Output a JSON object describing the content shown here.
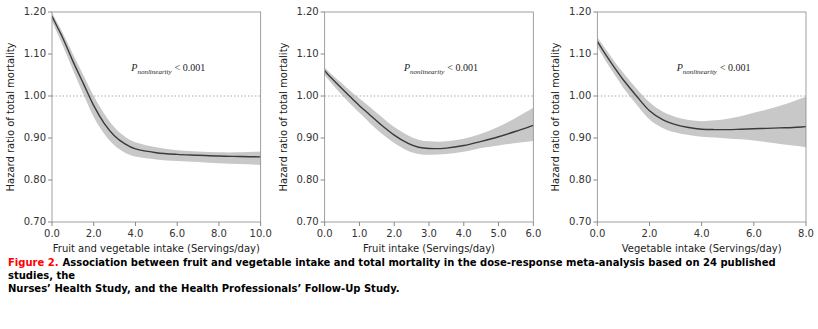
{
  "chart_data": [
    {
      "type": "line",
      "xlabel": "Fruit and vegetable intake (Servings/day)",
      "ylabel": "Hazard ratio of total mortality",
      "xlim": [
        0,
        10
      ],
      "xticks": [
        {
          "value": 0.0,
          "label": "0.0"
        },
        {
          "value": 2.0,
          "label": "2.0"
        },
        {
          "value": 4.0,
          "label": "4.0"
        },
        {
          "value": 6.0,
          "label": "6.0"
        },
        {
          "value": 8.0,
          "label": "8.0"
        },
        {
          "value": 10.0,
          "label": "10.0"
        }
      ],
      "ylim": [
        0.7,
        1.2
      ],
      "yticks": [
        {
          "value": 0.7,
          "label": "0.70"
        },
        {
          "value": 0.8,
          "label": "0.80"
        },
        {
          "value": 0.9,
          "label": "0.90"
        },
        {
          "value": 1.0,
          "label": "1.00"
        },
        {
          "value": 1.1,
          "label": "1.10"
        },
        {
          "value": 1.2,
          "label": "1.20"
        }
      ],
      "grid": false,
      "x": [
        0.0,
        0.25,
        0.5,
        0.75,
        1.0,
        1.5,
        2.0,
        2.5,
        3.0,
        3.5,
        4.0,
        5.0,
        6.0,
        7.0,
        8.0,
        9.0,
        10.0
      ],
      "series": [
        {
          "type": "band",
          "color": "#c8c8c8",
          "upper": [
            1.198,
            1.175,
            1.152,
            1.126,
            1.1,
            1.05,
            1.0,
            0.958,
            0.925,
            0.903,
            0.89,
            0.878,
            0.871,
            0.868,
            0.866,
            0.866,
            0.868
          ],
          "lower": [
            1.178,
            1.15,
            1.122,
            1.092,
            1.062,
            1.005,
            0.95,
            0.91,
            0.882,
            0.865,
            0.856,
            0.849,
            0.845,
            0.843,
            0.84,
            0.838,
            0.836
          ]
        },
        {
          "type": "line",
          "color": "#3a3a3a",
          "values": [
            1.19,
            1.165,
            1.14,
            1.112,
            1.083,
            1.03,
            0.977,
            0.935,
            0.905,
            0.886,
            0.874,
            0.865,
            0.861,
            0.859,
            0.857,
            0.856,
            0.855
          ]
        }
      ],
      "reference_lines": [
        {
          "y": 1.0,
          "color": "#aaaaaa",
          "line_style": "dotted"
        }
      ],
      "annotations": [
        {
          "base": "P",
          "sub": "nonlinearity",
          "text": "< 0.001"
        }
      ]
    },
    {
      "type": "line",
      "xlabel": "Fruit intake (Servings/day)",
      "ylabel": "Hazard ratio of total mortality",
      "xlim": [
        0,
        6
      ],
      "xticks": [
        {
          "value": 0.0,
          "label": "0.0"
        },
        {
          "value": 1.0,
          "label": "1.0"
        },
        {
          "value": 2.0,
          "label": "2.0"
        },
        {
          "value": 3.0,
          "label": "3.0"
        },
        {
          "value": 4.0,
          "label": "4.0"
        },
        {
          "value": 5.0,
          "label": "5.0"
        },
        {
          "value": 6.0,
          "label": "6.0"
        }
      ],
      "ylim": [
        0.7,
        1.2
      ],
      "yticks": [
        {
          "value": 0.7,
          "label": "0.70"
        },
        {
          "value": 0.8,
          "label": "0.80"
        },
        {
          "value": 0.9,
          "label": "0.90"
        },
        {
          "value": 1.0,
          "label": "1.00"
        },
        {
          "value": 1.1,
          "label": "1.10"
        },
        {
          "value": 1.2,
          "label": "1.20"
        }
      ],
      "grid": false,
      "x": [
        0.0,
        0.2,
        0.5,
        0.8,
        1.0,
        1.3,
        1.6,
        2.0,
        2.4,
        2.7,
        3.0,
        3.5,
        4.0,
        4.5,
        5.0,
        5.5,
        6.0
      ],
      "series": [
        {
          "type": "band",
          "color": "#c8c8c8",
          "upper": [
            1.068,
            1.052,
            1.03,
            1.008,
            0.994,
            0.974,
            0.953,
            0.926,
            0.906,
            0.896,
            0.892,
            0.892,
            0.898,
            0.91,
            0.927,
            0.948,
            0.972
          ],
          "lower": [
            1.05,
            1.03,
            1.002,
            0.976,
            0.96,
            0.936,
            0.913,
            0.888,
            0.869,
            0.862,
            0.86,
            0.862,
            0.867,
            0.876,
            0.882,
            0.888,
            0.893
          ]
        },
        {
          "type": "line",
          "color": "#3a3a3a",
          "values": [
            1.06,
            1.042,
            1.017,
            0.993,
            0.977,
            0.955,
            0.933,
            0.907,
            0.887,
            0.878,
            0.875,
            0.876,
            0.882,
            0.892,
            0.903,
            0.916,
            0.93
          ]
        }
      ],
      "reference_lines": [
        {
          "y": 1.0,
          "color": "#aaaaaa",
          "line_style": "dotted"
        }
      ],
      "annotations": [
        {
          "base": "P",
          "sub": "nonlinearity",
          "text": "< 0.001"
        }
      ]
    },
    {
      "type": "line",
      "xlabel": "Vegetable intake (Servings/day)",
      "ylabel": "Hazard ratio of total mortality",
      "xlim": [
        0,
        8
      ],
      "xticks": [
        {
          "value": 0.0,
          "label": "0.0"
        },
        {
          "value": 2.0,
          "label": "2.0"
        },
        {
          "value": 4.0,
          "label": "4.0"
        },
        {
          "value": 6.0,
          "label": "6.0"
        },
        {
          "value": 8.0,
          "label": "8.0"
        }
      ],
      "ylim": [
        0.7,
        1.2
      ],
      "yticks": [
        {
          "value": 0.7,
          "label": "0.70"
        },
        {
          "value": 0.8,
          "label": "0.80"
        },
        {
          "value": 0.9,
          "label": "0.90"
        },
        {
          "value": 1.0,
          "label": "1.00"
        },
        {
          "value": 1.1,
          "label": "1.10"
        },
        {
          "value": 1.2,
          "label": "1.20"
        }
      ],
      "grid": false,
      "x": [
        0.0,
        0.2,
        0.5,
        0.8,
        1.0,
        1.5,
        2.0,
        2.5,
        3.0,
        3.5,
        4.0,
        4.5,
        5.0,
        5.5,
        6.0,
        6.5,
        7.0,
        7.5,
        8.0
      ],
      "series": [
        {
          "type": "band",
          "color": "#c8c8c8",
          "upper": [
            1.14,
            1.122,
            1.096,
            1.07,
            1.055,
            1.018,
            0.985,
            0.963,
            0.95,
            0.943,
            0.94,
            0.942,
            0.946,
            0.952,
            0.96,
            0.968,
            0.977,
            0.987,
            0.998
          ],
          "lower": [
            1.118,
            1.096,
            1.066,
            1.038,
            1.019,
            0.98,
            0.944,
            0.924,
            0.913,
            0.907,
            0.903,
            0.901,
            0.899,
            0.897,
            0.894,
            0.89,
            0.886,
            0.882,
            0.878
          ]
        },
        {
          "type": "line",
          "color": "#3a3a3a",
          "values": [
            1.13,
            1.11,
            1.082,
            1.055,
            1.038,
            1.0,
            0.965,
            0.944,
            0.932,
            0.925,
            0.921,
            0.92,
            0.92,
            0.921,
            0.922,
            0.923,
            0.924,
            0.925,
            0.927
          ]
        }
      ],
      "reference_lines": [
        {
          "y": 1.0,
          "color": "#aaaaaa",
          "line_style": "dotted"
        }
      ],
      "annotations": [
        {
          "base": "P",
          "sub": "nonlinearity",
          "text": "< 0.001"
        }
      ]
    }
  ],
  "caption": {
    "label": "Figure 2.",
    "color": "red",
    "text": " Association between fruit and vegetable intake and total mortality in the dose-response meta-analysis based on 24 published studies, the\nNurses’ Health Study, and the Health Professionals’ Follow-Up Study."
  }
}
